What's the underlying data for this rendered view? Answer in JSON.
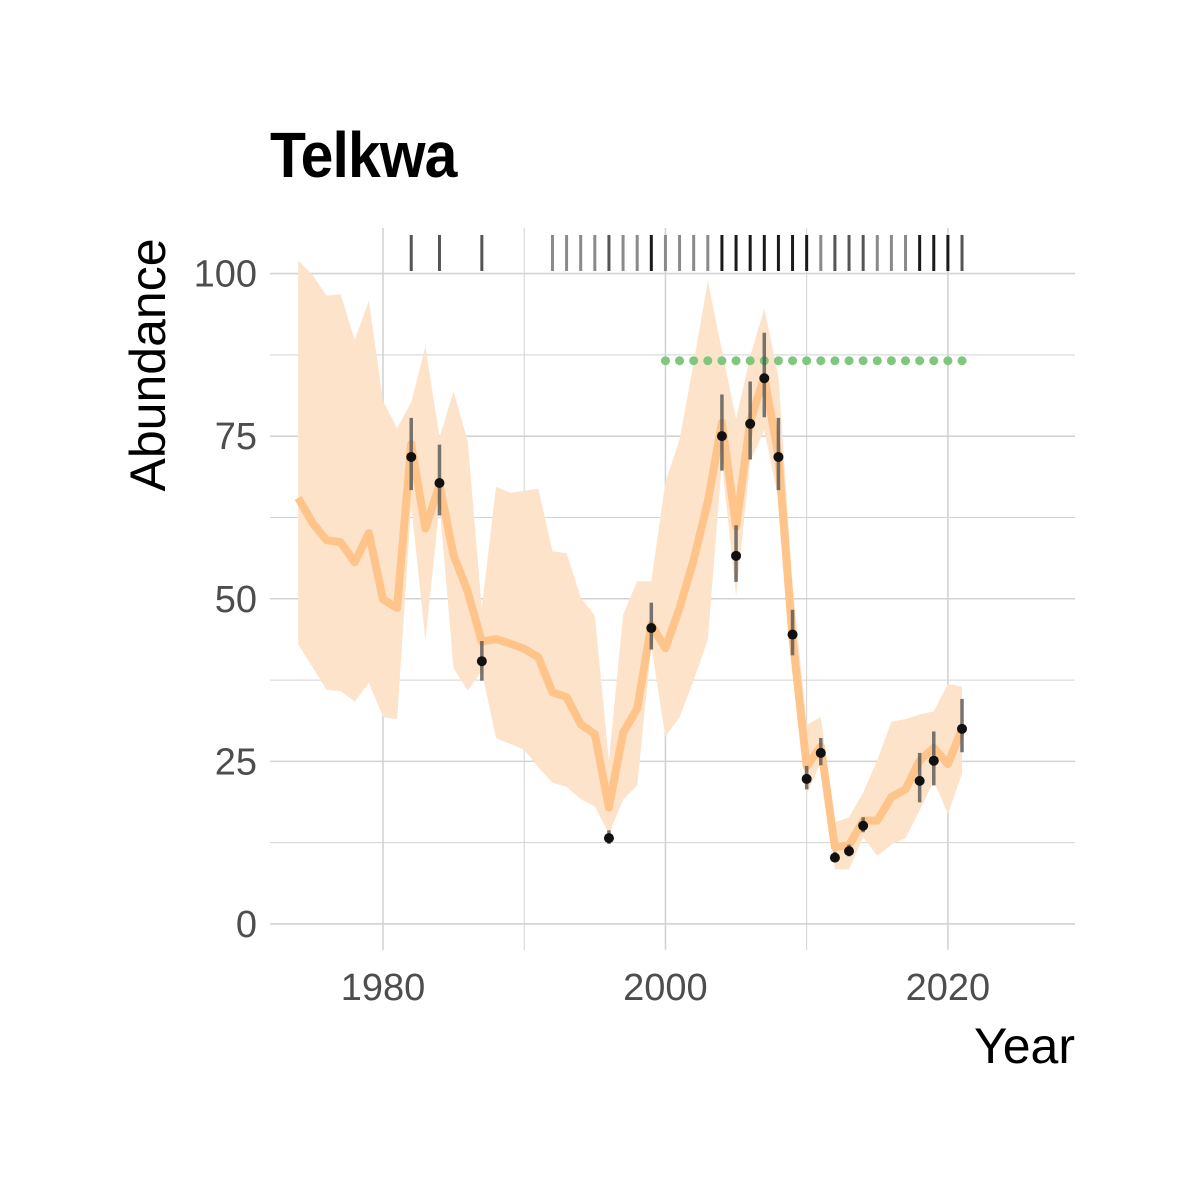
{
  "title": "Telkwa",
  "chart_data": {
    "type": "line",
    "title": "Telkwa",
    "xlabel": "Year",
    "ylabel": "Abundance",
    "xlim": [
      1972,
      2029
    ],
    "ylim": [
      -4,
      107
    ],
    "x_ticks": [
      1980,
      2000,
      2020
    ],
    "x_tick_labels": [
      "1980",
      "2000",
      "2020"
    ],
    "y_ticks": [
      0,
      25,
      50,
      75,
      100
    ],
    "y_tick_labels": [
      "0",
      "25",
      "50",
      "75",
      "100"
    ],
    "grid": true,
    "colors": {
      "line": "#fec48a",
      "ribbon": "#fde3c9",
      "points": "#111111",
      "errorbars": "#555555",
      "target": "#7ec87e",
      "grid": "#d3d3d3"
    },
    "series": [
      {
        "kind": "median_line_with_ribbon",
        "x": [
          1974,
          1975,
          1976,
          1977,
          1978,
          1979,
          1980,
          1981,
          1982,
          1983,
          1984,
          1985,
          1986,
          1987,
          1988,
          1989,
          1990,
          1991,
          1992,
          1993,
          1994,
          1995,
          1996,
          1997,
          1998,
          1999,
          2000,
          2001,
          2002,
          2003,
          2004,
          2005,
          2006,
          2007,
          2008,
          2009,
          2010,
          2011,
          2012,
          2013,
          2014,
          2015,
          2016,
          2017,
          2018,
          2019,
          2020,
          2021
        ],
        "median": [
          65.5,
          61.7,
          59,
          58.7,
          55.6,
          60.1,
          49.9,
          48.6,
          73.8,
          60.8,
          67.5,
          56.7,
          51.1,
          43.4,
          43.8,
          43.1,
          42.3,
          41,
          35.6,
          34.9,
          30.7,
          29.2,
          17.9,
          29.4,
          33.1,
          46,
          42.4,
          48.6,
          56,
          64.9,
          77.1,
          61.1,
          77.3,
          84.1,
          72,
          44,
          24.2,
          27.3,
          11.8,
          12.1,
          15.9,
          15.9,
          19.5,
          20.7,
          25.1,
          27.1,
          24.6,
          30
        ],
        "lower": [
          43,
          39.5,
          36,
          35.8,
          34.2,
          37.1,
          31.8,
          31.5,
          64.5,
          43.6,
          64.4,
          39.3,
          35.9,
          38.9,
          28.6,
          27.7,
          26.8,
          24.1,
          21.7,
          21.1,
          19.2,
          18.1,
          13.8,
          19.1,
          21.3,
          42.8,
          28.8,
          31.8,
          37.5,
          43.7,
          71,
          50.4,
          71.2,
          75.9,
          65.3,
          39.4,
          19.9,
          24.9,
          8.4,
          8.4,
          13.3,
          10.5,
          12.2,
          13.2,
          17.4,
          22,
          16.9,
          23.1
        ],
        "upper": [
          102,
          99.8,
          96.6,
          96.8,
          89.8,
          95.8,
          80.4,
          76.2,
          80.2,
          88.8,
          74.8,
          81.9,
          74.2,
          48.5,
          67.2,
          66.3,
          66.6,
          66.9,
          57.3,
          57,
          50.2,
          47.4,
          25.1,
          47.5,
          52.7,
          52.7,
          67.9,
          74.5,
          86.3,
          98.9,
          88.2,
          77.6,
          87.3,
          94.6,
          84.2,
          52,
          30.6,
          31.8,
          15.6,
          16.4,
          20.2,
          25.2,
          31.1,
          31.5,
          32.2,
          32.7,
          36.9,
          36.5
        ]
      },
      {
        "kind": "observations",
        "x": [
          1982,
          1984,
          1987,
          1996,
          1999,
          2004,
          2005,
          2006,
          2007,
          2008,
          2009,
          2010,
          2011,
          2012,
          2013,
          2014,
          2018,
          2019,
          2021
        ],
        "y": [
          71.8,
          67.8,
          40.4,
          13.2,
          45.5,
          75,
          56.6,
          76.9,
          83.9,
          71.8,
          44.5,
          22.3,
          26.3,
          10.2,
          11.2,
          15.1,
          22,
          25.1,
          30
        ],
        "lower": [
          66.7,
          62.8,
          37.4,
          12.3,
          42.2,
          69.7,
          52.6,
          71.4,
          77.9,
          66.7,
          41.3,
          20.7,
          24.4,
          9.5,
          10.4,
          14.1,
          18.7,
          21.3,
          26.4
        ],
        "upper": [
          77.8,
          73.7,
          43.5,
          14.4,
          49.4,
          81.4,
          61.3,
          83.4,
          90.9,
          77.8,
          48.3,
          24.3,
          28.6,
          11.1,
          12.2,
          16.4,
          26.3,
          29.6,
          34.6
        ]
      },
      {
        "kind": "target",
        "x": [
          2000,
          2001,
          2002,
          2003,
          2004,
          2005,
          2006,
          2007,
          2008,
          2009,
          2010,
          2011,
          2012,
          2013,
          2014,
          2015,
          2016,
          2017,
          2018,
          2019,
          2020,
          2021
        ],
        "y": 86.6
      },
      {
        "kind": "rug",
        "years_dark": [
          1999,
          2004,
          2005,
          2006,
          2007,
          2008,
          2009,
          2010,
          2018,
          2019,
          2020
        ],
        "years_mid": [
          1982,
          1984,
          1987,
          1996,
          2012,
          2013,
          2014,
          2021
        ],
        "years_light": [
          1992,
          1993,
          1994,
          1995,
          1997,
          1998,
          2000,
          2001,
          2002,
          2003,
          2011,
          2015,
          2016,
          2017
        ]
      }
    ]
  }
}
